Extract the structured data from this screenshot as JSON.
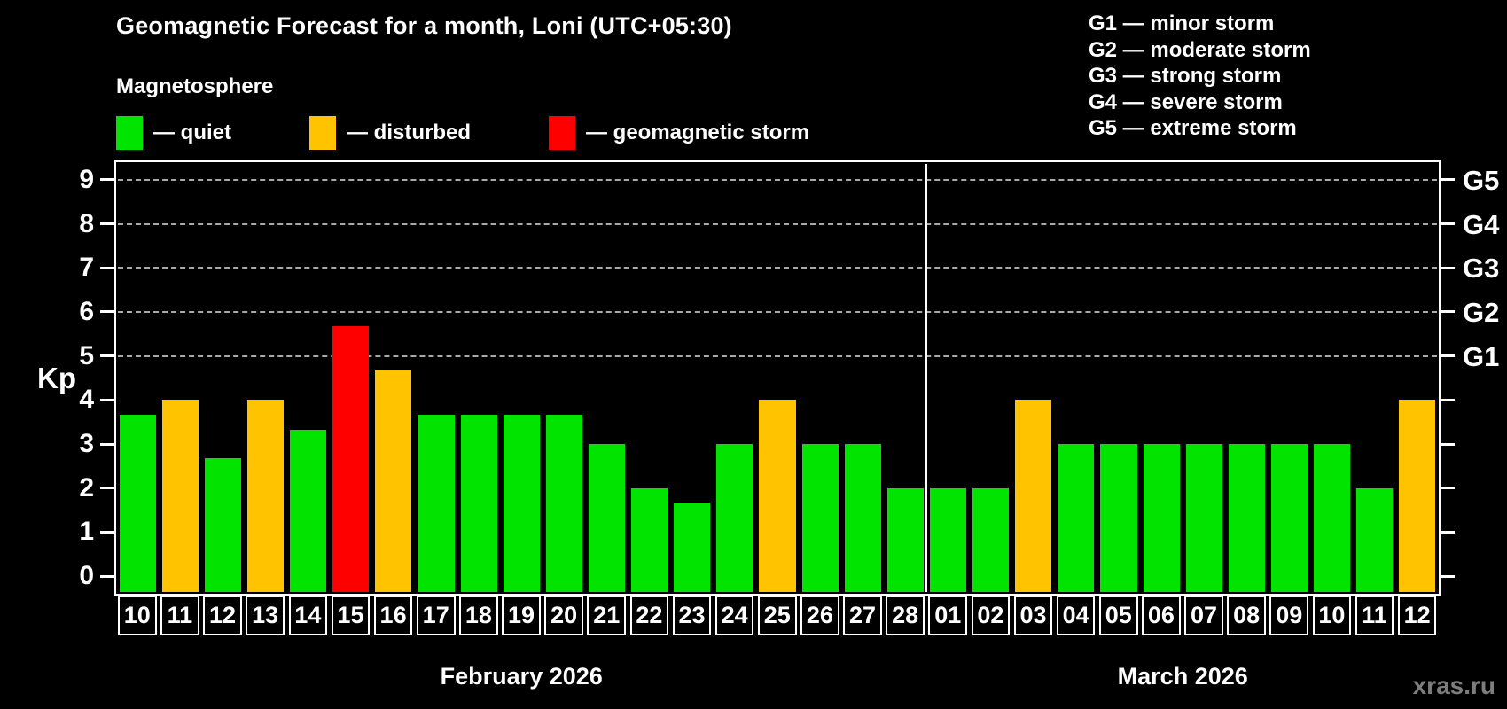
{
  "title": "Geomagnetic Forecast for a month, Loni (UTC+05:30)",
  "subtitle": "Magnetosphere",
  "legend": {
    "items": [
      {
        "label": "— quiet",
        "status": "quiet",
        "color": "#00e400"
      },
      {
        "label": "— disturbed",
        "status": "disturbed",
        "color": "#ffc300"
      },
      {
        "label": "— geomagnetic storm",
        "status": "storm",
        "color": "#ff0000"
      }
    ]
  },
  "g_storm_legend": [
    "G1 — minor storm",
    "G2 — moderate storm",
    "G3 — strong storm",
    "G4 — severe storm",
    "G5 — extreme storm"
  ],
  "watermark": "xras.ru",
  "chart_data": {
    "type": "bar",
    "title": "Geomagnetic Forecast for a month, Loni (UTC+05:30)",
    "ylabel": "Kp",
    "ylim": [
      -0.4,
      9.4
    ],
    "yticks": [
      0,
      1,
      2,
      3,
      4,
      5,
      6,
      7,
      8,
      9
    ],
    "grid": {
      "dashed_levels": [
        5,
        6,
        7,
        8,
        9
      ],
      "right_labels": [
        "G1",
        "G2",
        "G3",
        "G4",
        "G5"
      ]
    },
    "legend_position": "top",
    "status_colors": {
      "quiet": "#00e400",
      "disturbed": "#ffc300",
      "storm": "#ff0000"
    },
    "months": [
      {
        "label": "February 2026",
        "days": 19
      },
      {
        "label": "March 2026",
        "days": 12
      }
    ],
    "bars": [
      {
        "day": "10",
        "kp": 3.67,
        "status": "quiet"
      },
      {
        "day": "11",
        "kp": 4.0,
        "status": "disturbed"
      },
      {
        "day": "12",
        "kp": 2.67,
        "status": "quiet"
      },
      {
        "day": "13",
        "kp": 4.0,
        "status": "disturbed"
      },
      {
        "day": "14",
        "kp": 3.33,
        "status": "quiet"
      },
      {
        "day": "15",
        "kp": 5.67,
        "status": "storm"
      },
      {
        "day": "16",
        "kp": 4.67,
        "status": "disturbed"
      },
      {
        "day": "17",
        "kp": 3.67,
        "status": "quiet"
      },
      {
        "day": "18",
        "kp": 3.67,
        "status": "quiet"
      },
      {
        "day": "19",
        "kp": 3.67,
        "status": "quiet"
      },
      {
        "day": "20",
        "kp": 3.67,
        "status": "quiet"
      },
      {
        "day": "21",
        "kp": 3.0,
        "status": "quiet"
      },
      {
        "day": "22",
        "kp": 2.0,
        "status": "quiet"
      },
      {
        "day": "23",
        "kp": 1.67,
        "status": "quiet"
      },
      {
        "day": "24",
        "kp": 3.0,
        "status": "quiet"
      },
      {
        "day": "25",
        "kp": 4.0,
        "status": "disturbed"
      },
      {
        "day": "26",
        "kp": 3.0,
        "status": "quiet"
      },
      {
        "day": "27",
        "kp": 3.0,
        "status": "quiet"
      },
      {
        "day": "28",
        "kp": 2.0,
        "status": "quiet"
      },
      {
        "day": "01",
        "kp": 2.0,
        "status": "quiet"
      },
      {
        "day": "02",
        "kp": 2.0,
        "status": "quiet"
      },
      {
        "day": "03",
        "kp": 4.0,
        "status": "disturbed"
      },
      {
        "day": "04",
        "kp": 3.0,
        "status": "quiet"
      },
      {
        "day": "05",
        "kp": 3.0,
        "status": "quiet"
      },
      {
        "day": "06",
        "kp": 3.0,
        "status": "quiet"
      },
      {
        "day": "07",
        "kp": 3.0,
        "status": "quiet"
      },
      {
        "day": "08",
        "kp": 3.0,
        "status": "quiet"
      },
      {
        "day": "09",
        "kp": 3.0,
        "status": "quiet"
      },
      {
        "day": "10",
        "kp": 3.0,
        "status": "quiet"
      },
      {
        "day": "11",
        "kp": 2.0,
        "status": "quiet"
      },
      {
        "day": "12",
        "kp": 4.0,
        "status": "disturbed"
      }
    ]
  }
}
